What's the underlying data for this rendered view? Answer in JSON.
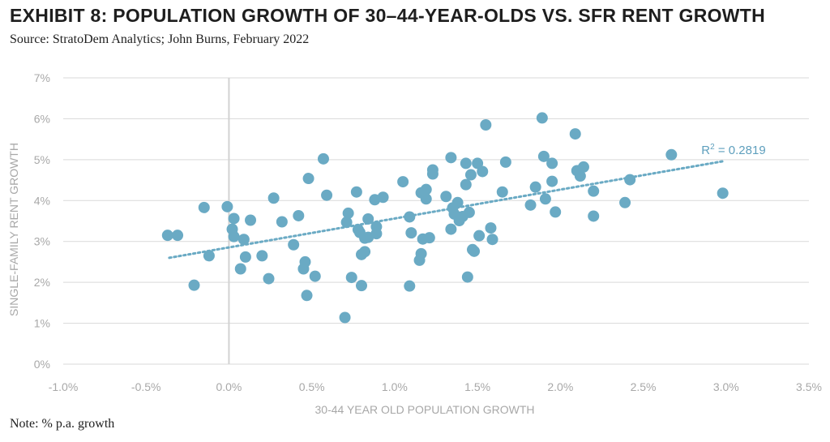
{
  "header": {
    "title": "EXHIBIT 8: POPULATION GROWTH OF 30–44-YEAR-OLDS VS. SFR RENT GROWTH",
    "source": "Source: StratoDem Analytics; John Burns, February 2022"
  },
  "footer": {
    "note": "Note: % p.a. growth"
  },
  "colors": {
    "points": "#6aaac4",
    "trendline": "#6aaac4",
    "gridline": "#d9d9d9",
    "zero_line": "#d2d2d2",
    "axis_text": "#a8a8a8",
    "title": "#1e1e1e",
    "r2_label": "#5e9fbd"
  },
  "chart_data": {
    "type": "scatter",
    "title": "EXHIBIT 8: POPULATION GROWTH OF 30–44-YEAR-OLDS VS. SFR RENT GROWTH",
    "xlabel": "30-44 YEAR OLD POPULATION GROWTH",
    "ylabel": "SINGLE-FAMILY RENT GROWTH",
    "xlim": [
      -1.0,
      3.5
    ],
    "ylim": [
      0,
      7
    ],
    "x_ticks": [
      -1.0,
      -0.5,
      0.0,
      0.5,
      1.0,
      1.5,
      2.0,
      2.5,
      3.0,
      3.5
    ],
    "x_tick_labels": [
      "-1.0%",
      "-0.5%",
      "0.0%",
      "0.5%",
      "1.0%",
      "1.5%",
      "2.0%",
      "2.5%",
      "3.0%",
      "3.5%"
    ],
    "y_ticks": [
      0,
      1,
      2,
      3,
      4,
      5,
      6,
      7
    ],
    "y_tick_labels": [
      "0%",
      "1%",
      "2%",
      "3%",
      "4%",
      "5%",
      "6%",
      "7%"
    ],
    "grid": "horizontal",
    "annotation": "R² = 0.2819",
    "trendline": {
      "x": [
        -0.36,
        2.98
      ],
      "y": [
        2.6,
        4.96
      ]
    },
    "points": [
      [
        -0.37,
        3.15
      ],
      [
        -0.31,
        3.15
      ],
      [
        -0.21,
        1.93
      ],
      [
        -0.15,
        3.83
      ],
      [
        -0.12,
        2.65
      ],
      [
        -0.01,
        3.85
      ],
      [
        0.02,
        3.3
      ],
      [
        0.03,
        3.56
      ],
      [
        0.03,
        3.12
      ],
      [
        0.07,
        2.33
      ],
      [
        0.09,
        3.05
      ],
      [
        0.1,
        2.62
      ],
      [
        0.13,
        3.52
      ],
      [
        0.2,
        2.65
      ],
      [
        0.24,
        2.09
      ],
      [
        0.27,
        4.06
      ],
      [
        0.32,
        3.48
      ],
      [
        0.39,
        2.92
      ],
      [
        0.42,
        3.63
      ],
      [
        0.45,
        2.33
      ],
      [
        0.46,
        2.5
      ],
      [
        0.47,
        1.68
      ],
      [
        0.48,
        4.54
      ],
      [
        0.52,
        2.15
      ],
      [
        0.57,
        5.02
      ],
      [
        0.59,
        4.13
      ],
      [
        0.71,
        3.47
      ],
      [
        0.72,
        3.69
      ],
      [
        0.74,
        2.12
      ],
      [
        0.77,
        4.21
      ],
      [
        0.78,
        3.29
      ],
      [
        0.79,
        3.22
      ],
      [
        0.8,
        1.92
      ],
      [
        0.8,
        2.68
      ],
      [
        0.82,
        2.75
      ],
      [
        0.82,
        3.08
      ],
      [
        0.84,
        3.55
      ],
      [
        0.84,
        3.1
      ],
      [
        0.88,
        4.02
      ],
      [
        0.89,
        3.36
      ],
      [
        0.89,
        3.19
      ],
      [
        0.93,
        4.08
      ],
      [
        0.7,
        1.14
      ],
      [
        1.05,
        4.46
      ],
      [
        1.09,
        3.6
      ],
      [
        1.1,
        3.21
      ],
      [
        1.09,
        1.91
      ],
      [
        1.15,
        2.54
      ],
      [
        1.16,
        2.7
      ],
      [
        1.17,
        3.06
      ],
      [
        1.16,
        4.19
      ],
      [
        1.19,
        4.27
      ],
      [
        1.19,
        4.04
      ],
      [
        1.21,
        3.09
      ],
      [
        1.23,
        4.75
      ],
      [
        1.23,
        4.65
      ],
      [
        1.31,
        4.1
      ],
      [
        1.34,
        3.3
      ],
      [
        1.34,
        5.05
      ],
      [
        1.35,
        3.82
      ],
      [
        1.36,
        3.67
      ],
      [
        1.38,
        3.95
      ],
      [
        1.39,
        3.51
      ],
      [
        1.41,
        3.61
      ],
      [
        1.43,
        4.39
      ],
      [
        1.43,
        4.91
      ],
      [
        1.44,
        2.13
      ],
      [
        1.45,
        3.71
      ],
      [
        1.46,
        4.63
      ],
      [
        1.47,
        2.8
      ],
      [
        1.48,
        2.76
      ],
      [
        1.5,
        4.91
      ],
      [
        1.51,
        3.14
      ],
      [
        1.53,
        4.71
      ],
      [
        1.55,
        5.85
      ],
      [
        1.58,
        3.33
      ],
      [
        1.59,
        3.05
      ],
      [
        1.65,
        4.21
      ],
      [
        1.67,
        4.94
      ],
      [
        1.82,
        3.89
      ],
      [
        1.85,
        4.33
      ],
      [
        1.89,
        6.02
      ],
      [
        1.9,
        5.08
      ],
      [
        1.91,
        4.04
      ],
      [
        1.95,
        4.47
      ],
      [
        1.95,
        4.91
      ],
      [
        1.97,
        3.72
      ],
      [
        2.09,
        5.63
      ],
      [
        2.1,
        4.73
      ],
      [
        2.12,
        4.6
      ],
      [
        2.14,
        4.82
      ],
      [
        2.2,
        4.23
      ],
      [
        2.2,
        3.62
      ],
      [
        2.39,
        3.95
      ],
      [
        2.42,
        4.51
      ],
      [
        2.67,
        5.12
      ],
      [
        2.98,
        4.18
      ]
    ]
  }
}
